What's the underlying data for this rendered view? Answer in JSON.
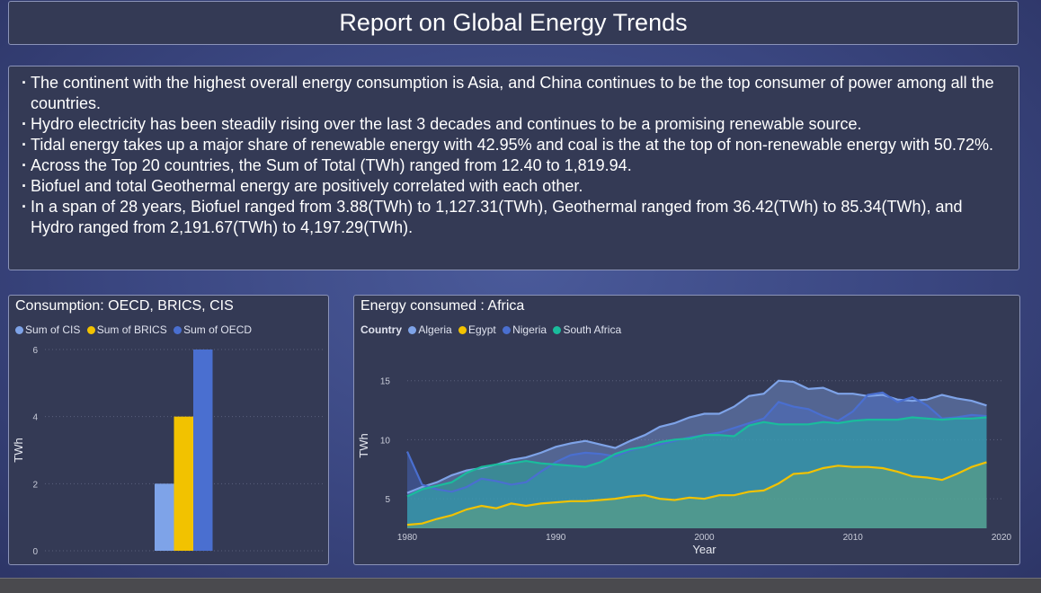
{
  "title": "Report on Global Energy Trends",
  "summary": [
    "The continent with the highest overall energy consumption is Asia, and China continues to be the top consumer of power among all the countries.",
    "Hydro electricity has been steadily rising over the last 3 decades and continues to be a promising renewable source.",
    "Tidal energy takes up a major share of renewable energy with 42.95% and coal is the at the top of non-renewable energy with 50.72%.",
    "Across the Top 20 countries, the Sum of Total (TWh) ranged from 12.40 to 1,819.94.",
    "Biofuel and total Geothermal energy are positively correlated with each other.",
    "In a span of 28 years, Biofuel ranged from 3.88(TWh) to 1,127.31(TWh), Geothermal ranged from 36.42(TWh) to 85.34(TWh), and Hydro ranged from 2,191.67(TWh) to 4,197.29(TWh)."
  ],
  "chart_data": [
    {
      "type": "bar",
      "title": "Consumption: OECD, BRICS, CIS",
      "ylabel": "TWh",
      "xlabel": "",
      "ylim": [
        0,
        6
      ],
      "yticks": [
        "0",
        "2",
        "4",
        "6"
      ],
      "grid": true,
      "legend_position": "top-left",
      "series": [
        {
          "name": "Sum of CIS",
          "value": 2,
          "color": "#7ea3e8"
        },
        {
          "name": "Sum of BRICS",
          "value": 4,
          "color": "#f2c200"
        },
        {
          "name": "Sum of OECD",
          "value": 6,
          "color": "#4a6fd0"
        }
      ]
    },
    {
      "type": "area",
      "title": "Energy consumed : Africa",
      "legend_title": "Country",
      "legend_position": "top-left",
      "xlabel": "Year",
      "ylabel": "TWh",
      "xlim": [
        1980,
        2020
      ],
      "ylim": [
        2.5,
        16.5
      ],
      "xticks": [
        "1980",
        "1990",
        "2000",
        "2010",
        "2020"
      ],
      "yticks": [
        "5",
        "10",
        "15"
      ],
      "grid": true,
      "x": [
        1980,
        1981,
        1982,
        1983,
        1984,
        1985,
        1986,
        1987,
        1988,
        1989,
        1990,
        1991,
        1992,
        1993,
        1994,
        1995,
        1996,
        1997,
        1998,
        1999,
        2000,
        2001,
        2002,
        2003,
        2004,
        2005,
        2006,
        2007,
        2008,
        2009,
        2010,
        2011,
        2012,
        2013,
        2014,
        2015,
        2016,
        2017,
        2018,
        2019
      ],
      "series": [
        {
          "name": "Algeria",
          "color": "#7ea3e8",
          "values": [
            5.5,
            6.0,
            6.4,
            7.0,
            7.4,
            7.6,
            7.9,
            8.3,
            8.5,
            8.9,
            9.4,
            9.7,
            9.9,
            9.6,
            9.3,
            9.9,
            10.4,
            11.1,
            11.4,
            11.9,
            12.2,
            12.2,
            12.8,
            13.7,
            13.9,
            15.0,
            14.9,
            14.3,
            14.4,
            13.9,
            13.9,
            13.7,
            13.8,
            13.4,
            13.3,
            13.4,
            13.8,
            13.5,
            13.3,
            12.9
          ]
        },
        {
          "name": "Egypt",
          "color": "#f2c200",
          "values": [
            2.8,
            2.9,
            3.3,
            3.6,
            4.1,
            4.4,
            4.2,
            4.6,
            4.4,
            4.6,
            4.7,
            4.8,
            4.8,
            4.9,
            5.0,
            5.2,
            5.3,
            5.0,
            4.9,
            5.1,
            5.0,
            5.3,
            5.3,
            5.6,
            5.7,
            6.3,
            7.1,
            7.2,
            7.6,
            7.8,
            7.7,
            7.7,
            7.6,
            7.3,
            6.9,
            6.8,
            6.6,
            7.1,
            7.7,
            8.1
          ]
        },
        {
          "name": "Nigeria",
          "color": "#4a6fd0",
          "values": [
            9.0,
            6.2,
            5.8,
            5.6,
            6.0,
            6.7,
            6.5,
            6.2,
            6.4,
            7.3,
            8.1,
            8.7,
            8.9,
            8.8,
            8.6,
            9.1,
            9.4,
            9.6,
            9.9,
            10.2,
            10.4,
            10.6,
            11.0,
            11.4,
            11.8,
            13.2,
            12.8,
            12.6,
            12.0,
            11.6,
            12.4,
            13.8,
            14.0,
            13.2,
            13.6,
            12.9,
            11.8,
            11.9,
            12.1,
            12.0
          ]
        },
        {
          "name": "South Africa",
          "color": "#1abc9c",
          "values": [
            5.2,
            5.8,
            6.1,
            6.4,
            7.2,
            7.7,
            7.9,
            8.0,
            8.2,
            8.0,
            7.9,
            7.8,
            7.7,
            8.1,
            8.8,
            9.2,
            9.4,
            9.8,
            10.0,
            10.1,
            10.4,
            10.4,
            10.3,
            11.2,
            11.5,
            11.3,
            11.3,
            11.3,
            11.5,
            11.4,
            11.6,
            11.7,
            11.7,
            11.7,
            11.9,
            11.8,
            11.7,
            11.8,
            11.8,
            11.9
          ]
        }
      ]
    }
  ]
}
